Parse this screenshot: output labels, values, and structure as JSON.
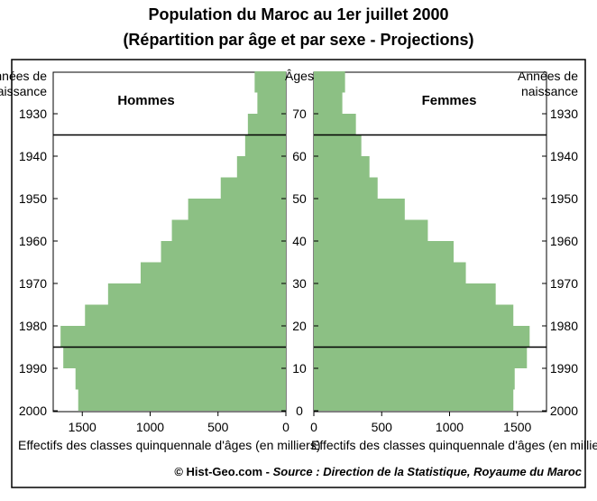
{
  "chart_data": {
    "type": "bar",
    "title": "Population du Maroc au 1er juillet 2000",
    "subtitle": "(Répartition par âge et par sexe - Projections)",
    "y_axis": {
      "left_label_line1": "Années de",
      "left_label_line2": "naissance",
      "right_label_line1": "Années de",
      "right_label_line2": "naissance",
      "center_label": "Âges",
      "age_ticks": [
        "0",
        "10",
        "20",
        "30",
        "40",
        "50",
        "60",
        "70"
      ],
      "age_tick_values": [
        0,
        10,
        20,
        30,
        40,
        50,
        60,
        70
      ],
      "year_ticks": [
        "2000",
        "1990",
        "1980",
        "1970",
        "1960",
        "1950",
        "1940",
        "1930"
      ],
      "year_tick_ages": [
        0,
        10,
        20,
        30,
        40,
        50,
        60,
        70
      ],
      "ylim": [
        0,
        80
      ]
    },
    "x_axis": {
      "label": "Effectifs des classes quinquennale d'âges (en milliers)",
      "tick_labels": [
        "0",
        "500",
        "1000",
        "1500"
      ],
      "tick_values": [
        0,
        500,
        1000,
        1500
      ],
      "xlim": [
        0,
        1700
      ]
    },
    "age_groups": [
      "0-4",
      "5-9",
      "10-14",
      "15-19",
      "20-24",
      "25-29",
      "30-34",
      "35-39",
      "40-44",
      "45-49",
      "50-54",
      "55-59",
      "60-64",
      "65-69",
      "70-74",
      "75-79"
    ],
    "age_group_starts": [
      0,
      5,
      10,
      15,
      20,
      25,
      30,
      35,
      40,
      45,
      50,
      55,
      60,
      65,
      70,
      75
    ],
    "series": [
      {
        "name": "Hommes",
        "values": [
          1530,
          1550,
          1640,
          1660,
          1480,
          1310,
          1070,
          920,
          840,
          720,
          480,
          360,
          300,
          280,
          210,
          230
        ]
      },
      {
        "name": "Femmes",
        "values": [
          1470,
          1480,
          1570,
          1590,
          1470,
          1340,
          1120,
          1030,
          840,
          670,
          470,
          410,
          350,
          310,
          210,
          230
        ]
      }
    ],
    "reference_lines_age": [
      15,
      65
    ],
    "bar_color": "#8cc084",
    "grid": false
  },
  "footer": {
    "credit_prefix": "© Hist-Geo.com - ",
    "credit_source": "Source : Direction de la Statistique, Royaume du Maroc"
  }
}
